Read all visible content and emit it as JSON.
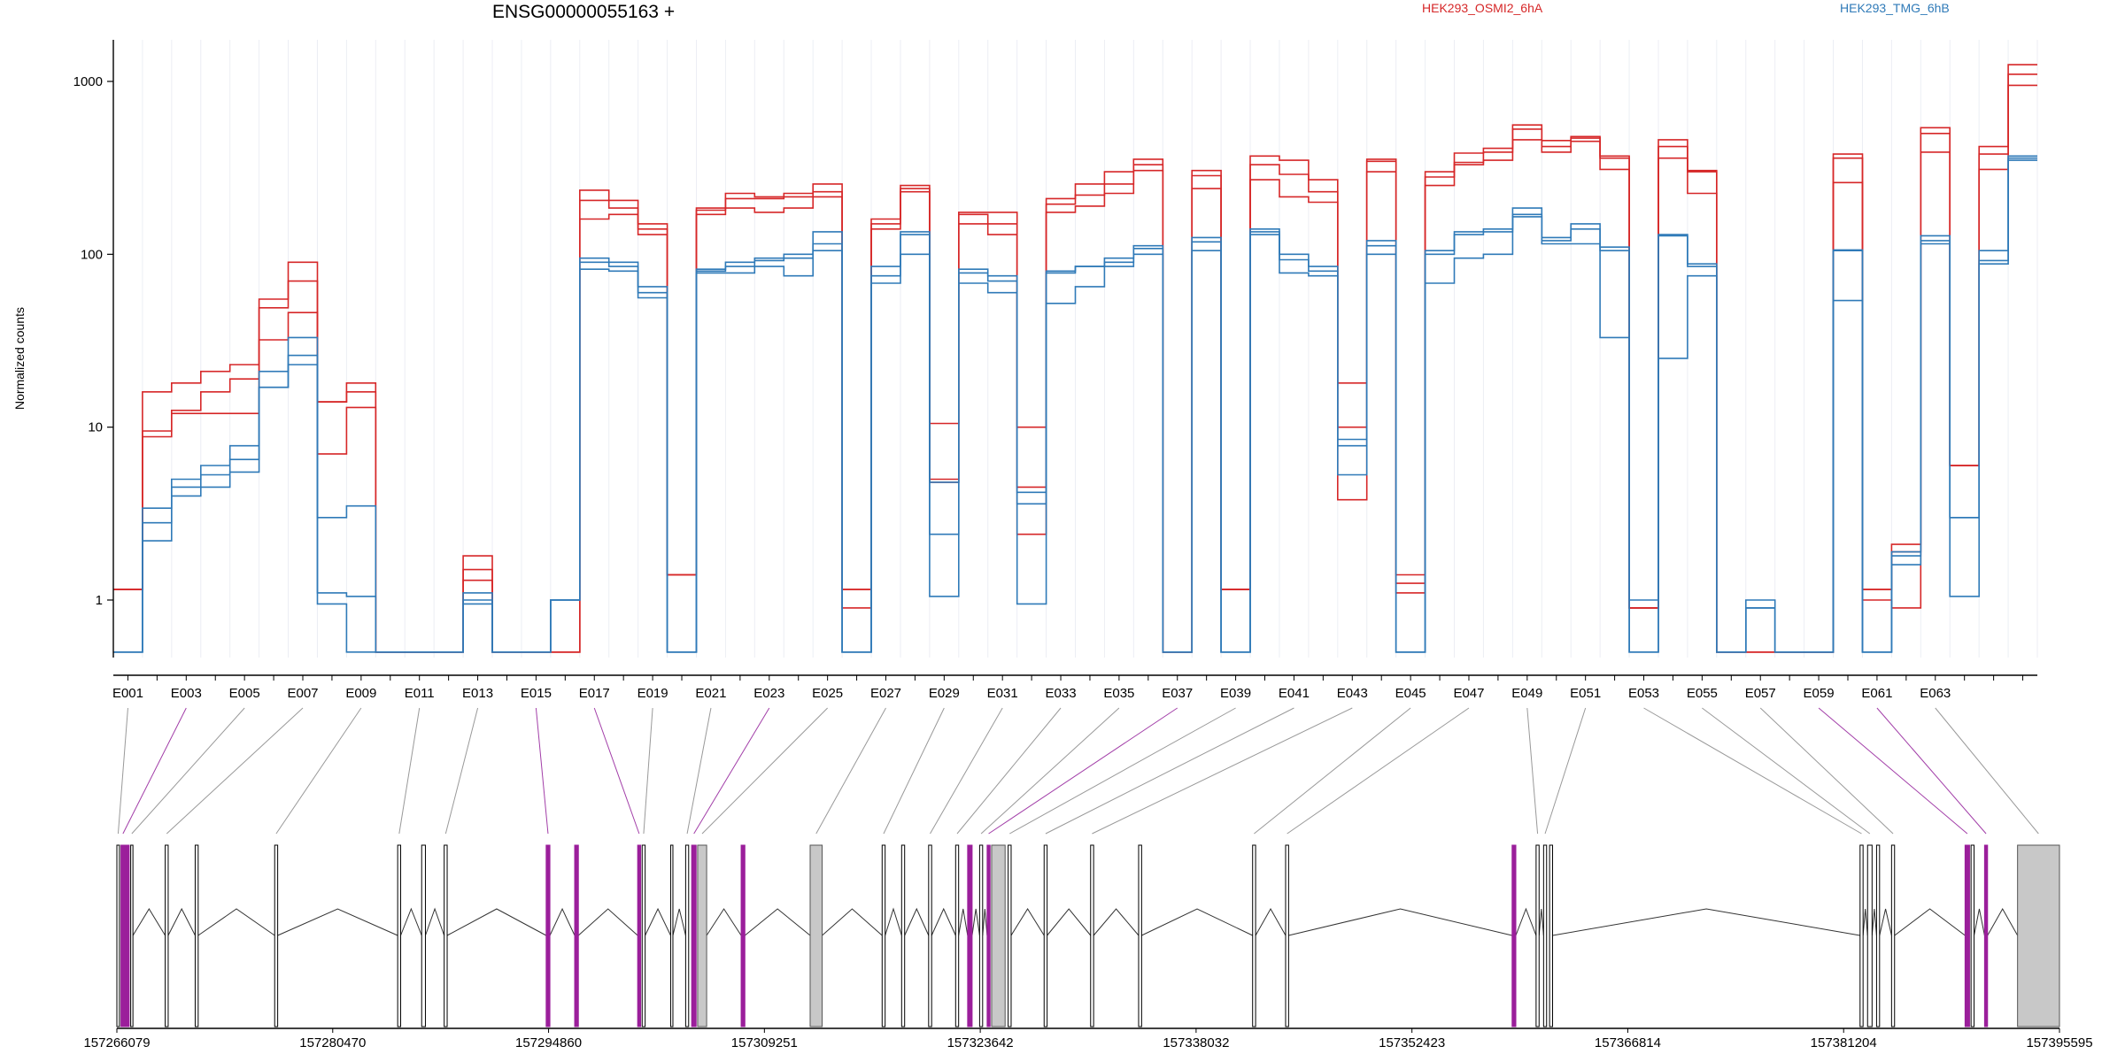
{
  "chart_data": {
    "type": "line",
    "title": "ENSG00000055163 +",
    "ylabel": "Normalized counts",
    "yscale": "log",
    "ylim": [
      0.4,
      1800
    ],
    "y_ticks": [
      1,
      10,
      100,
      1000
    ],
    "y_tick_labels": [
      "1",
      "10",
      "100",
      "1000"
    ],
    "legend": [
      {
        "name": "HEK293_OSMI2_6hA",
        "color": "#d62728"
      },
      {
        "name": "HEK293_TMG_6hB",
        "color": "#2f7ab8"
      }
    ],
    "exon_labels": [
      "E001",
      "E003",
      "E005",
      "E007",
      "E009",
      "E011",
      "E013",
      "E015",
      "E017",
      "E019",
      "E021",
      "E023",
      "E025",
      "E027",
      "E029",
      "E031",
      "E033",
      "E035",
      "E037",
      "E039",
      "E041",
      "E043",
      "E045",
      "E047",
      "E049",
      "E051",
      "E053",
      "E055",
      "E057",
      "E059",
      "E061",
      "E063"
    ],
    "genomic_ticks": [
      "157266079",
      "157280470",
      "157294860",
      "157309251",
      "157323642",
      "157338032",
      "157352423",
      "157366814",
      "157381204",
      "157395595"
    ],
    "genomic_range": [
      157266079,
      157395595
    ],
    "red_series": [
      {
        "name": "HEK293_OSMI2_6hA rep1",
        "values": [
          1.15,
          16,
          18,
          21,
          23,
          55,
          90,
          14,
          18,
          0.5,
          0.5,
          0.5,
          1.8,
          0.5,
          0.5,
          0.5,
          235,
          205,
          150,
          1.4,
          185,
          225,
          215,
          225,
          255,
          1.15,
          160,
          250,
          10.5,
          175,
          175,
          10,
          210,
          255,
          300,
          355,
          0.5,
          305,
          1.15,
          370,
          350,
          270,
          18,
          355,
          1.4,
          300,
          385,
          410,
          560,
          455,
          480,
          370,
          0.9,
          460,
          305,
          0.5,
          0.5,
          0.5,
          0.5,
          380,
          1.15,
          2.1,
          540,
          6,
          420,
          1250
        ]
      },
      {
        "name": "HEK293_OSMI2_6hA rep2",
        "values": [
          1.15,
          9.5,
          12.5,
          16,
          19,
          49,
          70,
          14,
          16,
          0.5,
          0.5,
          0.5,
          1.5,
          0.5,
          0.5,
          0.5,
          205,
          185,
          140,
          1.4,
          180,
          210,
          210,
          215,
          230,
          1.15,
          150,
          240,
          5,
          170,
          150,
          4.5,
          195,
          220,
          255,
          330,
          0.5,
          285,
          1.15,
          330,
          290,
          230,
          10,
          345,
          1.25,
          280,
          340,
          390,
          530,
          420,
          470,
          360,
          0.9,
          420,
          300,
          0.5,
          0.5,
          0.5,
          0.5,
          360,
          1.15,
          1.9,
          500,
          6,
          380,
          1100
        ]
      },
      {
        "name": "HEK293_OSMI2_6hA rep3",
        "values": [
          1.15,
          8.8,
          12,
          12,
          12,
          32,
          46,
          7,
          13,
          0.5,
          0.5,
          0.5,
          1.3,
          0.5,
          0.5,
          0.5,
          160,
          170,
          130,
          1.4,
          170,
          185,
          175,
          185,
          215,
          0.9,
          140,
          230,
          4.8,
          150,
          130,
          2.4,
          175,
          190,
          225,
          305,
          0.5,
          240,
          1.15,
          270,
          215,
          200,
          3.8,
          300,
          1.1,
          250,
          330,
          350,
          460,
          390,
          450,
          310,
          0.9,
          360,
          225,
          0.5,
          0.5,
          0.5,
          0.5,
          260,
          1.0,
          0.9,
          390,
          6,
          310,
          950
        ]
      }
    ],
    "blue_series": [
      {
        "name": "HEK293_TMG_6hB rep1",
        "values": [
          0.5,
          3.4,
          5,
          6,
          7.8,
          21,
          33,
          3,
          3.5,
          0.5,
          0.5,
          0.5,
          1.1,
          0.5,
          0.5,
          1.0,
          95,
          90,
          65,
          0.5,
          82,
          90,
          95,
          100,
          135,
          0.5,
          85,
          135,
          4.8,
          82,
          75,
          4.2,
          80,
          85,
          95,
          112,
          0.5,
          125,
          0.5,
          140,
          100,
          85,
          8.5,
          120,
          0.5,
          105,
          135,
          140,
          185,
          125,
          150,
          110,
          1.0,
          130,
          88,
          0.5,
          1.0,
          0.5,
          0.5,
          106,
          0.5,
          1.9,
          128,
          3,
          105,
          370
        ]
      },
      {
        "name": "HEK293_TMG_6hB rep2",
        "values": [
          0.5,
          2.8,
          4.5,
          5.3,
          6.5,
          17,
          26,
          1.1,
          1.05,
          0.5,
          0.5,
          0.5,
          1.0,
          0.5,
          0.5,
          1.0,
          90,
          85,
          60,
          0.5,
          80,
          85,
          92,
          95,
          115,
          0.5,
          75,
          130,
          2.4,
          78,
          70,
          3.6,
          78,
          85,
          90,
          108,
          0.5,
          118,
          0.5,
          135,
          93,
          80,
          7.8,
          112,
          0.5,
          100,
          130,
          135,
          170,
          120,
          140,
          105,
          0.5,
          128,
          85,
          0.5,
          0.9,
          0.5,
          0.5,
          105,
          0.5,
          1.8,
          120,
          3,
          92,
          360
        ]
      },
      {
        "name": "HEK293_TMG_6hB rep3",
        "values": [
          0.5,
          2.2,
          4.0,
          4.5,
          5.5,
          17,
          23,
          0.95,
          0.5,
          0.5,
          0.5,
          0.5,
          0.95,
          0.5,
          0.5,
          1.0,
          82,
          80,
          56,
          0.5,
          78,
          78,
          85,
          75,
          105,
          0.5,
          68,
          100,
          1.05,
          68,
          60,
          0.95,
          52,
          65,
          85,
          100,
          0.5,
          105,
          0.5,
          130,
          78,
          75,
          5.3,
          100,
          0.5,
          68,
          95,
          100,
          165,
          115,
          115,
          33,
          0.5,
          25,
          75,
          0.5,
          0.9,
          0.5,
          0.5,
          54,
          0.5,
          1.6,
          115,
          1.05,
          88,
          350
        ]
      }
    ],
    "exon_blocks": [
      [
        157266079,
        157266250,
        "#000"
      ],
      [
        157266350,
        157266620,
        "#9b1f9b"
      ],
      [
        157266650,
        157266900,
        "#9b1f9b"
      ],
      [
        157267000,
        157267150,
        "#000"
      ],
      [
        157269300,
        157269500,
        "#000"
      ],
      [
        157271300,
        157271500,
        "#000"
      ],
      [
        157276600,
        157276800,
        "#000"
      ],
      [
        157284800,
        157285000,
        "#000"
      ],
      [
        157286400,
        157286650,
        "#000"
      ],
      [
        157287900,
        157288100,
        "#000"
      ],
      [
        157294700,
        157294950,
        "#9b1f9b"
      ],
      [
        157296600,
        157296850,
        "#9b1f9b"
      ],
      [
        157300800,
        157301000,
        "#9b1f9b"
      ],
      [
        157301100,
        157301300,
        "#000"
      ],
      [
        157303000,
        157303150,
        "#000"
      ],
      [
        157304000,
        157304200,
        "#000"
      ],
      [
        157304400,
        157304700,
        "#9b1f9b"
      ],
      [
        157304800,
        157305400,
        "#c8c8c8"
      ],
      [
        157307700,
        157307950,
        "#9b1f9b"
      ],
      [
        157312300,
        157313100,
        "#c8c8c8"
      ],
      [
        157317100,
        157317300,
        "#000"
      ],
      [
        157318400,
        157318600,
        "#000"
      ],
      [
        157320200,
        157320400,
        "#000"
      ],
      [
        157322000,
        157322200,
        "#000"
      ],
      [
        157322800,
        157323100,
        "#9b1f9b"
      ],
      [
        157323600,
        157323800,
        "#000"
      ],
      [
        157324100,
        157324300,
        "#9b1f9b"
      ],
      [
        157324400,
        157325300,
        "#c8c8c8"
      ],
      [
        157325500,
        157325700,
        "#000"
      ],
      [
        157327900,
        157328100,
        "#000"
      ],
      [
        157331000,
        157331200,
        "#000"
      ],
      [
        157334200,
        157334400,
        "#000"
      ],
      [
        157341800,
        157342000,
        "#000"
      ],
      [
        157344000,
        157344200,
        "#000"
      ],
      [
        157359100,
        157359350,
        "#9b1f9b"
      ],
      [
        157360700,
        157360900,
        "#000"
      ],
      [
        157361200,
        157361400,
        "#000"
      ],
      [
        157361600,
        157361800,
        "#000"
      ],
      [
        157382300,
        157382500,
        "#000"
      ],
      [
        157382800,
        157383100,
        "#000"
      ],
      [
        157383400,
        157383600,
        "#000"
      ],
      [
        157384400,
        157384600,
        "#000"
      ],
      [
        157389300,
        157389600,
        "#9b1f9b"
      ],
      [
        157389700,
        157389900,
        "#000"
      ],
      [
        157390600,
        157390800,
        "#9b1f9b"
      ],
      [
        157392800,
        157395595,
        "#c8c8c8"
      ]
    ]
  }
}
